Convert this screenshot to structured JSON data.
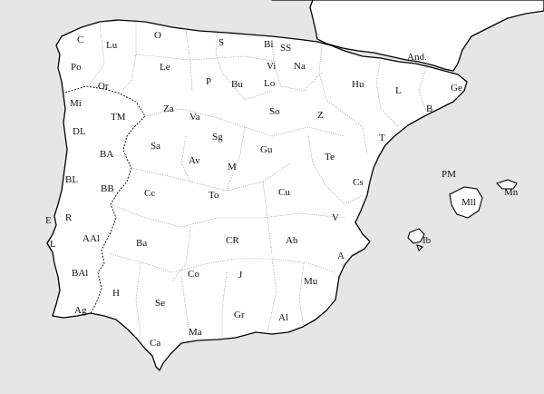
{
  "map": {
    "colors": {
      "sea": "#e6e6e6",
      "land": "#ffffff",
      "coast": "#000000",
      "province_border": "#777777"
    },
    "labels": [
      {
        "id": "C",
        "text": "C"
      },
      {
        "id": "Lu",
        "text": "Lu"
      },
      {
        "id": "O",
        "text": "O"
      },
      {
        "id": "S",
        "text": "S"
      },
      {
        "id": "Bi",
        "text": "Bi"
      },
      {
        "id": "SS",
        "text": "SS"
      },
      {
        "id": "And",
        "text": "And."
      },
      {
        "id": "Po",
        "text": "Po"
      },
      {
        "id": "Le",
        "text": "Le"
      },
      {
        "id": "Vi",
        "text": "Vi"
      },
      {
        "id": "Na",
        "text": "Na"
      },
      {
        "id": "Or",
        "text": "Or"
      },
      {
        "id": "P",
        "text": "P"
      },
      {
        "id": "Bu",
        "text": "Bu"
      },
      {
        "id": "Lo",
        "text": "Lo"
      },
      {
        "id": "Hu",
        "text": "Hu"
      },
      {
        "id": "Ge",
        "text": "Ge"
      },
      {
        "id": "L",
        "text": "L"
      },
      {
        "id": "Mi",
        "text": "Mi"
      },
      {
        "id": "Za",
        "text": "Za"
      },
      {
        "id": "TM",
        "text": "TM"
      },
      {
        "id": "Va",
        "text": "Va"
      },
      {
        "id": "So",
        "text": "So"
      },
      {
        "id": "Z",
        "text": "Z"
      },
      {
        "id": "B",
        "text": "B"
      },
      {
        "id": "DL",
        "text": "DL"
      },
      {
        "id": "Sg",
        "text": "Sg"
      },
      {
        "id": "Sa",
        "text": "Sa"
      },
      {
        "id": "Gu",
        "text": "Gu"
      },
      {
        "id": "T",
        "text": "T"
      },
      {
        "id": "BA",
        "text": "BA"
      },
      {
        "id": "Av",
        "text": "Av"
      },
      {
        "id": "M",
        "text": "M"
      },
      {
        "id": "Te",
        "text": "Te"
      },
      {
        "id": "PM",
        "text": "PM"
      },
      {
        "id": "BL",
        "text": "BL"
      },
      {
        "id": "BB",
        "text": "BB"
      },
      {
        "id": "Cs",
        "text": "Cs"
      },
      {
        "id": "Cc",
        "text": "Cc"
      },
      {
        "id": "To",
        "text": "To"
      },
      {
        "id": "Cu",
        "text": "Cu"
      },
      {
        "id": "Mll",
        "text": "Mll"
      },
      {
        "id": "Mn",
        "text": "Mn"
      },
      {
        "id": "E",
        "text": "E"
      },
      {
        "id": "R",
        "text": "R"
      },
      {
        "id": "V",
        "text": "V"
      },
      {
        "id": "AAl",
        "text": "AAl"
      },
      {
        "id": "Ba",
        "text": "Ba"
      },
      {
        "id": "CR",
        "text": "CR"
      },
      {
        "id": "Ab",
        "text": "Ab"
      },
      {
        "id": "Ib",
        "text": "Ib"
      },
      {
        "id": "Ls",
        "text": "L"
      },
      {
        "id": "A",
        "text": "A"
      },
      {
        "id": "BAl",
        "text": "BAl"
      },
      {
        "id": "Co",
        "text": "Co"
      },
      {
        "id": "J",
        "text": "J"
      },
      {
        "id": "H",
        "text": "H"
      },
      {
        "id": "Mu",
        "text": "Mu"
      },
      {
        "id": "Se",
        "text": "Se"
      },
      {
        "id": "Ag",
        "text": "Ag"
      },
      {
        "id": "Gr",
        "text": "Gr"
      },
      {
        "id": "Al",
        "text": "Al"
      },
      {
        "id": "Ca",
        "text": "Ca"
      },
      {
        "id": "Ma",
        "text": "Ma"
      }
    ]
  }
}
